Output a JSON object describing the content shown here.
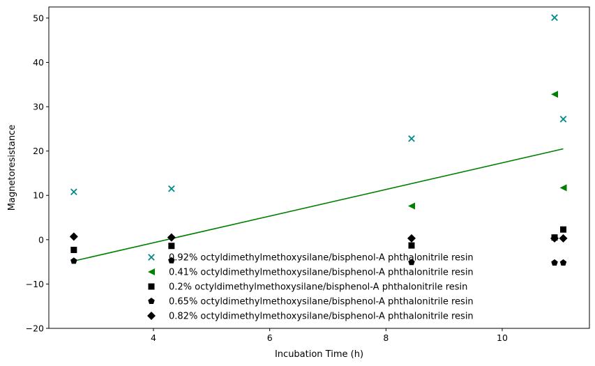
{
  "chart_data": {
    "type": "scatter",
    "title": "",
    "xlabel": "Incubation Time (h)",
    "ylabel": "Magnetoresistance",
    "xlim": [
      2.2,
      11.5
    ],
    "ylim": [
      -20,
      52.5
    ],
    "xticks": [
      4,
      6,
      8,
      10
    ],
    "yticks": [
      -20,
      -10,
      0,
      10,
      20,
      30,
      40,
      50
    ],
    "grid": false,
    "legend_position": "lower center",
    "series": [
      {
        "name": "0.92% octyldimethylmethoxysilane/bisphenol-A phthalonitrile resin",
        "marker": "x",
        "color": "#008b8b",
        "points": [
          [
            2.63,
            10.8
          ],
          [
            4.31,
            11.5
          ],
          [
            8.44,
            22.8
          ],
          [
            10.9,
            50.1
          ],
          [
            11.05,
            27.2
          ]
        ]
      },
      {
        "name": "0.41% octyldimethylmethoxysilane/bisphenol-A phthalonitrile resin",
        "marker": "triangle-left",
        "color": "#008000",
        "points": [
          [
            8.44,
            7.6
          ],
          [
            10.9,
            32.8
          ],
          [
            11.05,
            11.7
          ]
        ]
      },
      {
        "name": "0.2% octyldimethylmethoxysilane/bisphenol-A phthalonitrile resin",
        "marker": "square",
        "color": "#000000",
        "points": [
          [
            2.63,
            -2.3
          ],
          [
            4.31,
            -1.4
          ],
          [
            8.44,
            -1.3
          ],
          [
            10.9,
            0.5
          ],
          [
            11.05,
            2.3
          ]
        ]
      },
      {
        "name": "0.65% octyldimethylmethoxysilane/bisphenol-A phthalonitrile resin",
        "marker": "pentagon",
        "color": "#000000",
        "points": [
          [
            2.63,
            -4.8
          ],
          [
            4.31,
            -4.7
          ],
          [
            8.44,
            -5.1
          ],
          [
            10.9,
            -5.2
          ],
          [
            11.05,
            -5.2
          ]
        ]
      },
      {
        "name": "0.82% octyldimethylmethoxysilane/bisphenol-A phthalonitrile resin",
        "marker": "diamond",
        "color": "#000000",
        "points": [
          [
            2.63,
            0.7
          ],
          [
            4.31,
            0.5
          ],
          [
            8.44,
            0.3
          ],
          [
            10.9,
            0.3
          ],
          [
            11.05,
            0.3
          ]
        ]
      }
    ],
    "trend_line": {
      "color": "#008000",
      "points": [
        [
          2.63,
          -4.8
        ],
        [
          11.05,
          20.5
        ]
      ]
    }
  }
}
